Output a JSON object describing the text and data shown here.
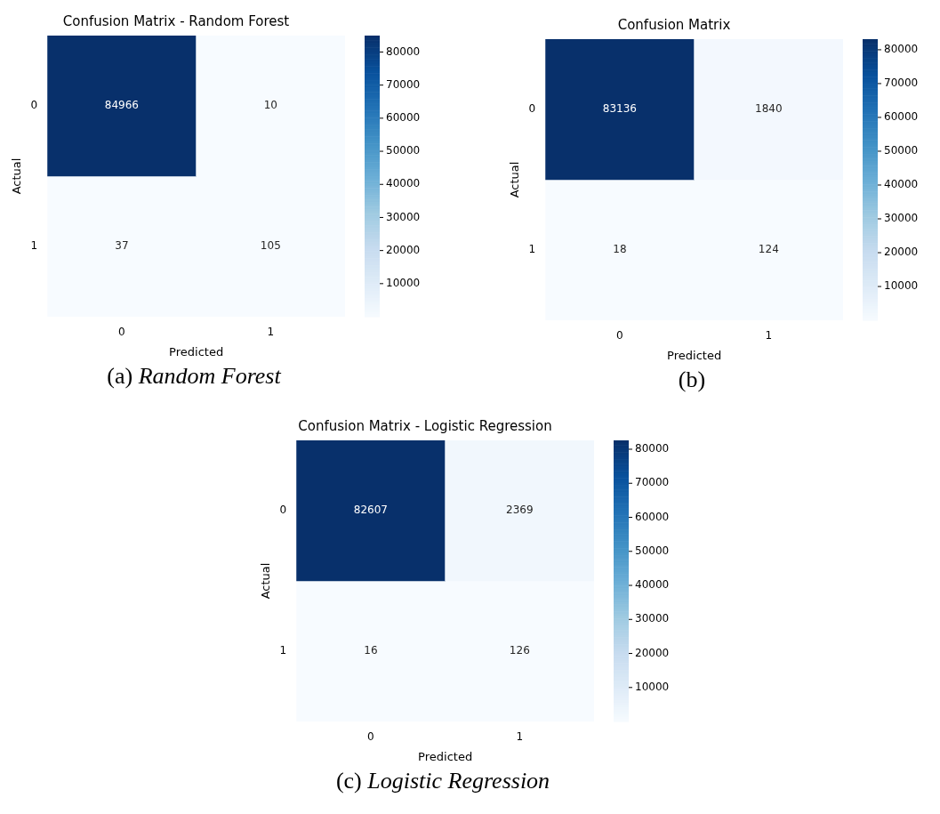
{
  "chart_data": [
    {
      "type": "heatmap",
      "title": "Confusion Matrix - Random Forest",
      "xlabel": "Predicted",
      "ylabel": "Actual",
      "categories": [
        "0",
        "1"
      ],
      "y_categories": [
        "0",
        "1"
      ],
      "cells": [
        [
          84966,
          10
        ],
        [
          37,
          105
        ]
      ],
      "clim": [
        10,
        84966
      ],
      "cticks": [
        10000,
        20000,
        30000,
        40000,
        50000,
        60000,
        70000,
        80000
      ],
      "data_labels": true,
      "annotations": [
        "(a) Random Forest"
      ]
    },
    {
      "type": "heatmap",
      "title": "Confusion Matrix",
      "xlabel": "Predicted",
      "ylabel": "Actual",
      "categories": [
        "0",
        "1"
      ],
      "y_categories": [
        "0",
        "1"
      ],
      "cells": [
        [
          83136,
          1840
        ],
        [
          18,
          124
        ]
      ],
      "clim": [
        18,
        83136
      ],
      "cticks": [
        10000,
        20000,
        30000,
        40000,
        50000,
        60000,
        70000,
        80000
      ],
      "data_labels": true,
      "annotations": [
        "(b)"
      ]
    },
    {
      "type": "heatmap",
      "title": "Confusion Matrix - Logistic Regression",
      "xlabel": "Predicted",
      "ylabel": "Actual",
      "categories": [
        "0",
        "1"
      ],
      "y_categories": [
        "0",
        "1"
      ],
      "cells": [
        [
          82607,
          2369
        ],
        [
          16,
          126
        ]
      ],
      "clim": [
        16,
        82607
      ],
      "cticks": [
        10000,
        20000,
        30000,
        40000,
        50000,
        60000,
        70000,
        80000
      ],
      "data_labels": true,
      "annotations": [
        "(c) Logistic Regression"
      ]
    }
  ]
}
